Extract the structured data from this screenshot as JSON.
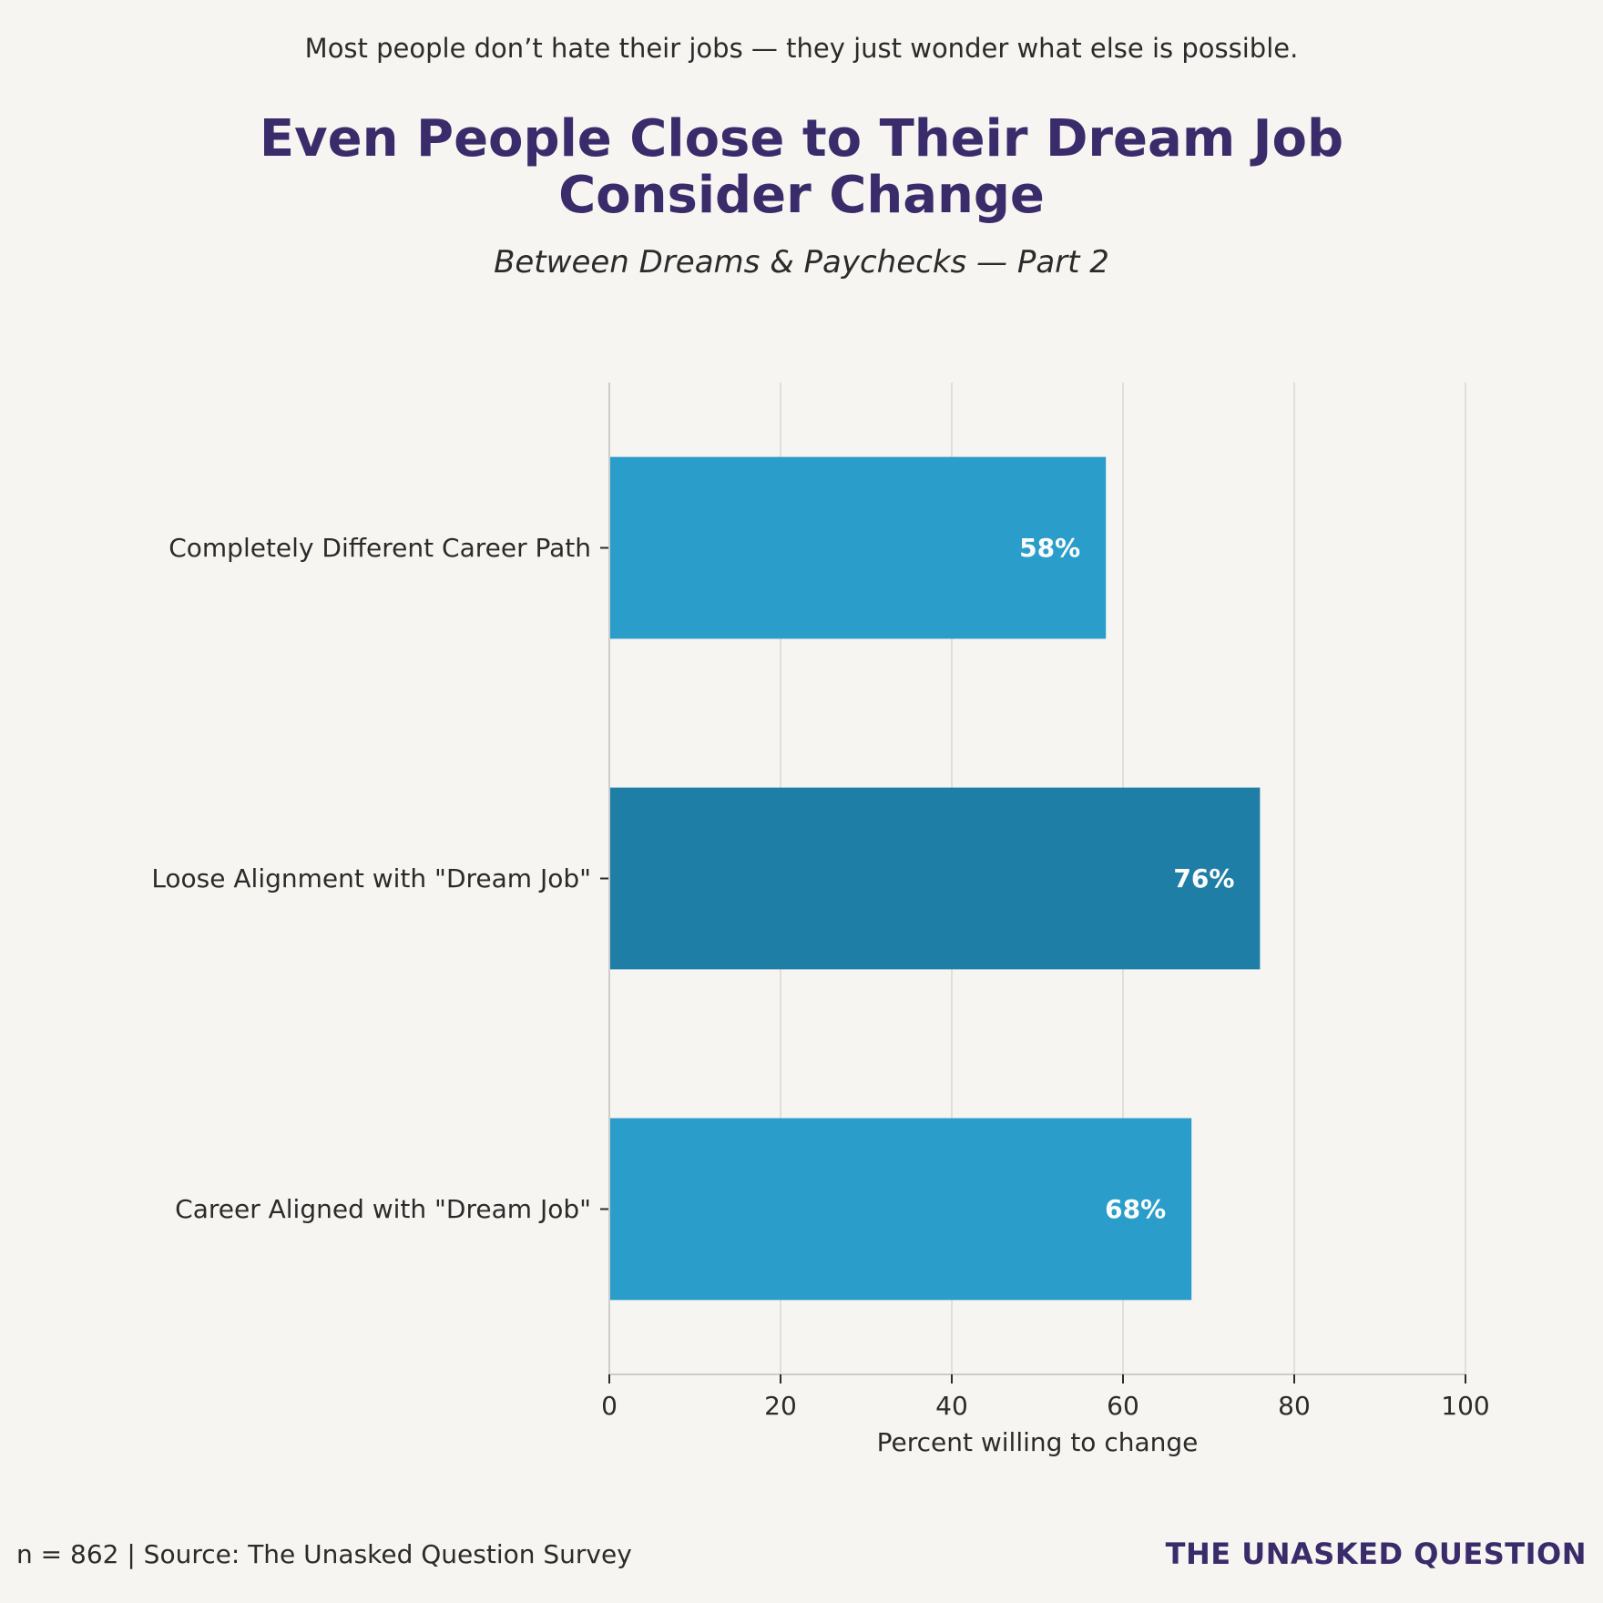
{
  "header": {
    "tagline": "Most people don’t hate their jobs — they just wonder what else is possible.",
    "title_line1": "Even People Close to Their Dream Job",
    "title_line2": "Consider Change",
    "subtitle": "Between Dreams & Paychecks — Part 2"
  },
  "chart_data": {
    "type": "bar",
    "orientation": "horizontal",
    "categories": [
      "Completely Different Career Path",
      "Loose Alignment with \"Dream Job\"",
      "Career Aligned with \"Dream Job\""
    ],
    "values": [
      58,
      76,
      68
    ],
    "data_labels": [
      "58%",
      "76%",
      "68%"
    ],
    "colors": [
      "#2a9dcb",
      "#1f7ea6",
      "#2a9dcb"
    ],
    "xlabel": "Percent willing to change",
    "ylabel": "",
    "xlim": [
      0,
      100
    ],
    "xticks": [
      0,
      20,
      40,
      60,
      80,
      100
    ],
    "grid": "vertical",
    "legend": "none"
  },
  "footer": {
    "source": "n = 862 | Source: The Unasked Question Survey",
    "brand": "THE UNASKED QUESTION"
  }
}
